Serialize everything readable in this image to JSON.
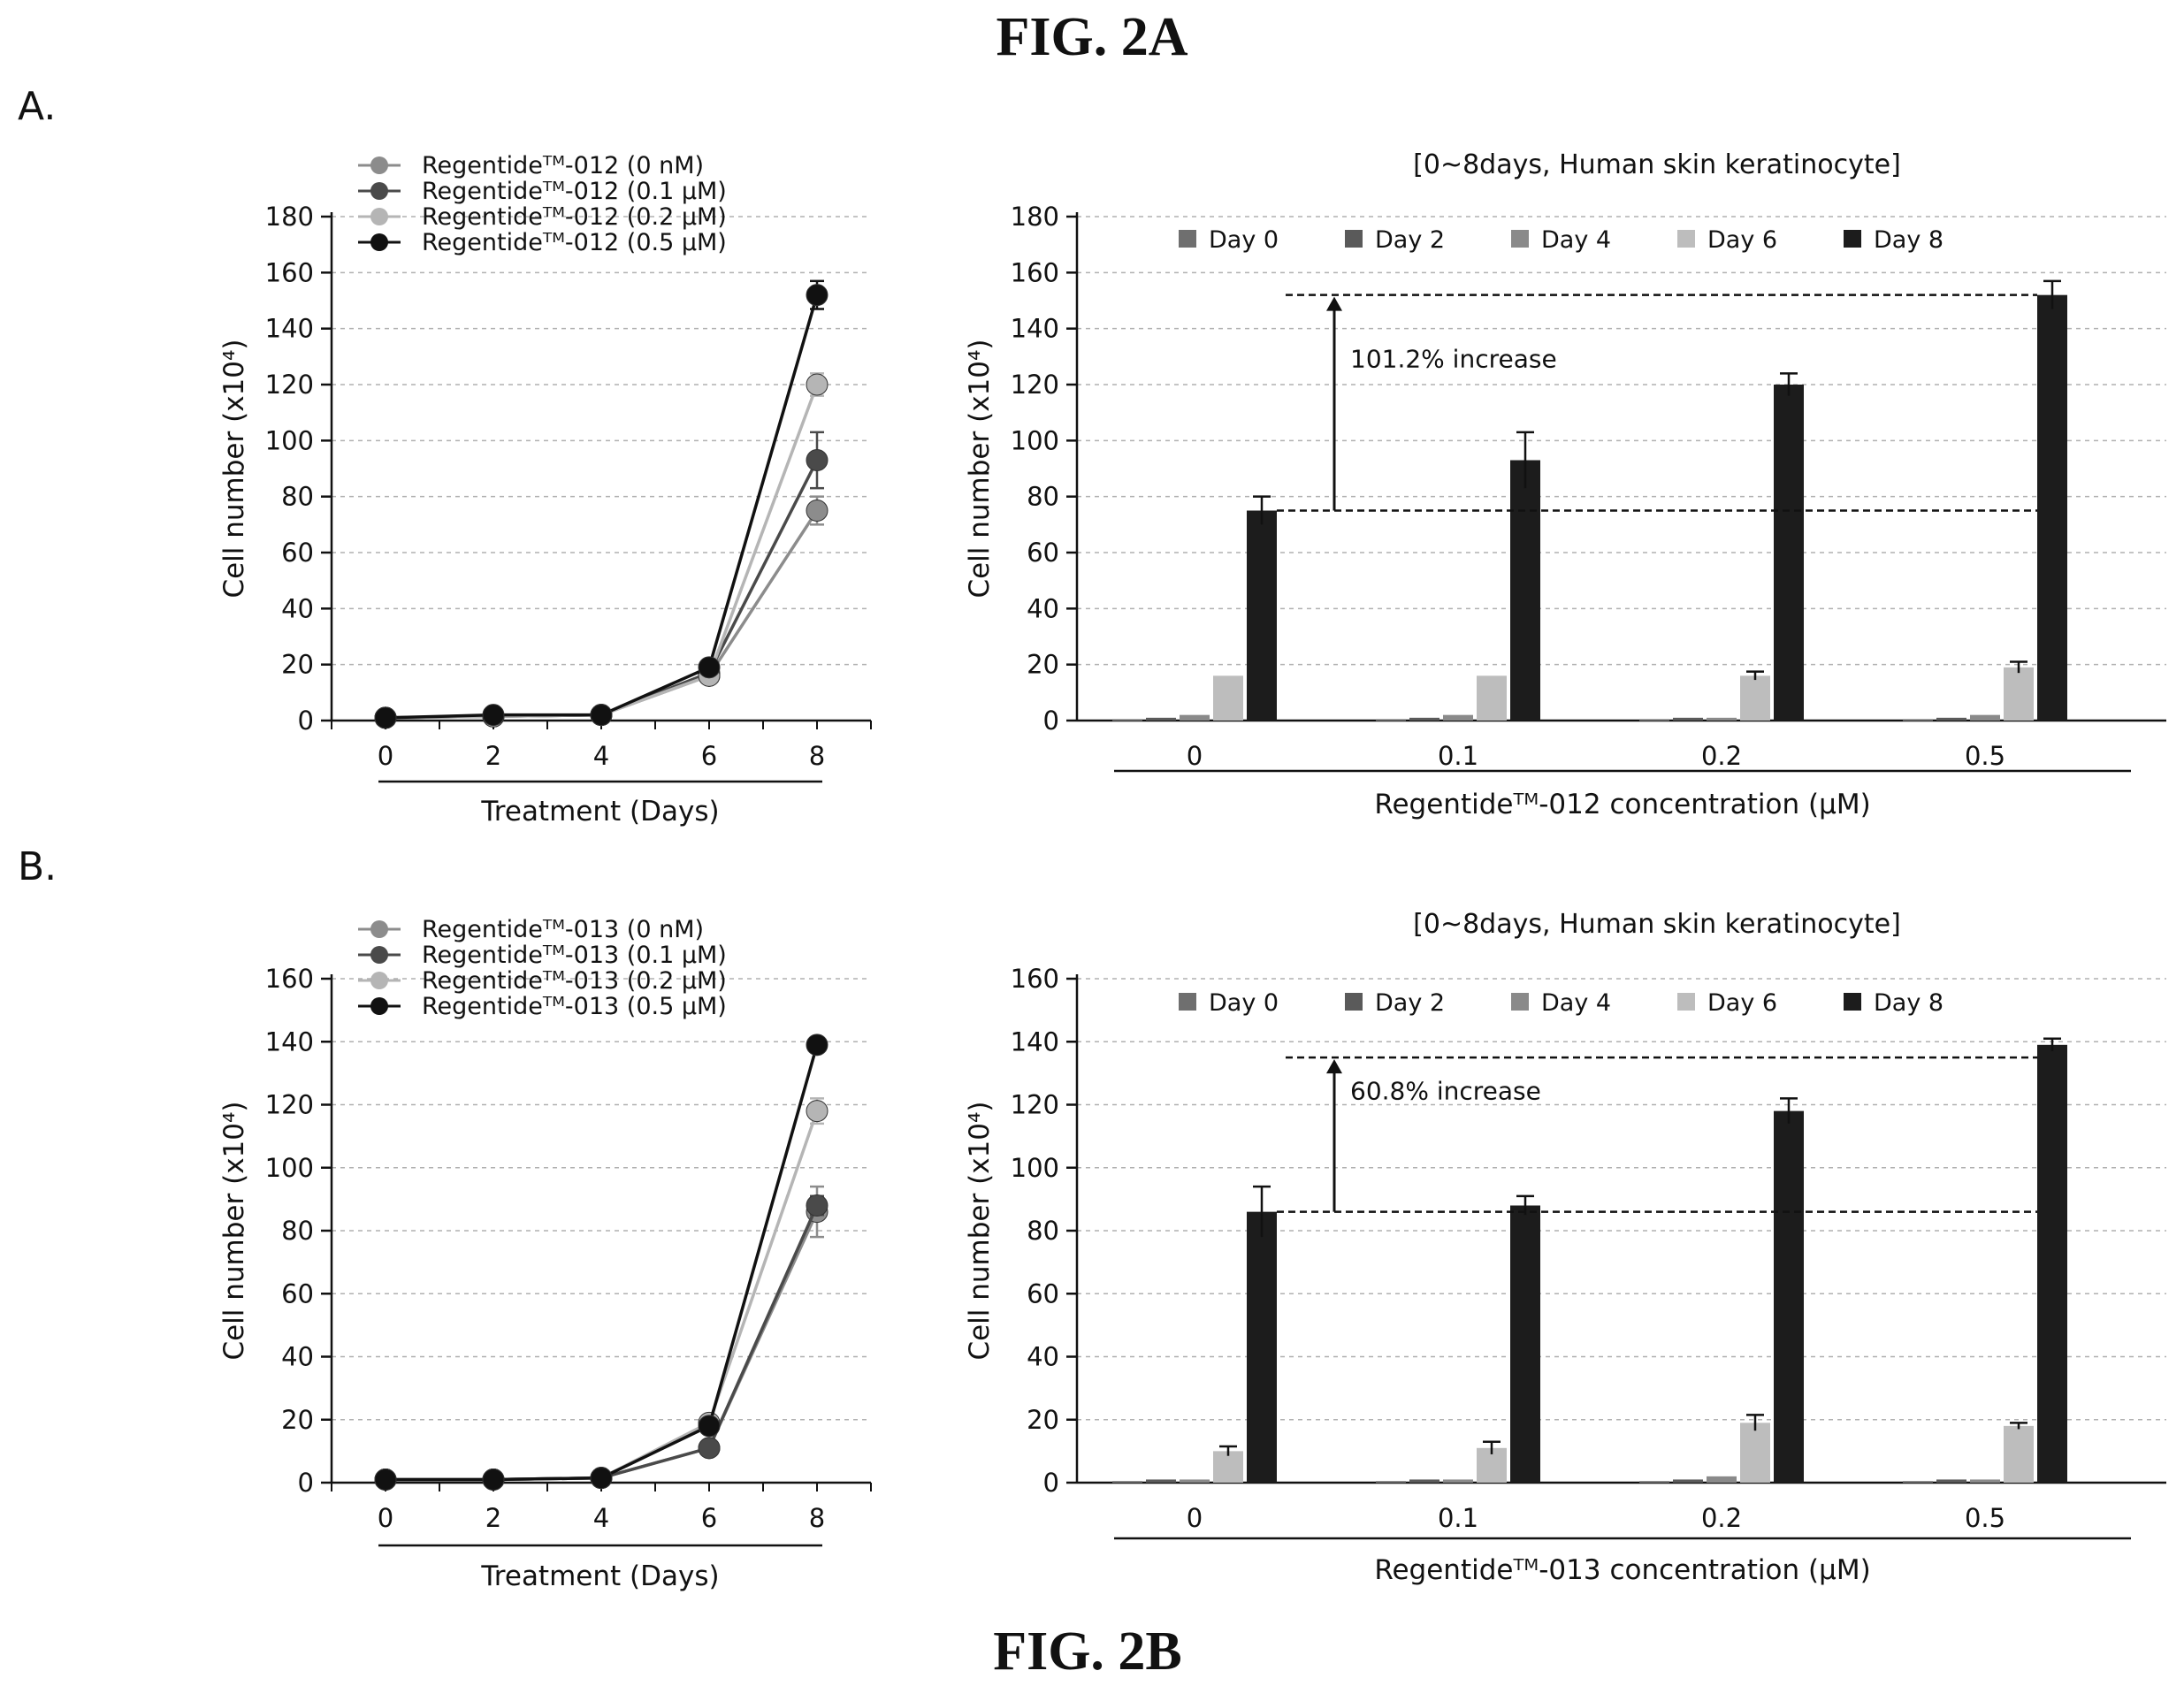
{
  "figure": {
    "title_top": "FIG. 2A",
    "title_bottom": "FIG. 2B",
    "panel_a_label": "A.",
    "panel_b_label": "B."
  },
  "colors": {
    "day0": "#6f6f6f",
    "day2": "#5a5a5a",
    "day4": "#8a8a8a",
    "day6": "#bdbdbd",
    "day8": "#1c1c1c",
    "line_0": "#8c8c8c",
    "line_01": "#4a4a4a",
    "line_02": "#b5b5b5",
    "line_05": "#111111",
    "grid": "#b0b0b0"
  },
  "chart_data": [
    {
      "type": "line",
      "panel": "A",
      "xlabel": "Treatment (Days)",
      "ylabel": "Cell number (x10⁴)",
      "x": [
        0,
        2,
        4,
        6,
        8
      ],
      "xlim": [
        -1,
        9
      ],
      "ylim": [
        0,
        180
      ],
      "yticks": [
        0,
        20,
        40,
        60,
        80,
        100,
        120,
        140,
        160,
        180
      ],
      "grid": true,
      "legend_position": "top-left",
      "series": [
        {
          "name": "Regentideᵀᴹ-012 (0 nM)",
          "color": "#8c8c8c",
          "values": [
            1,
            1.5,
            2,
            16,
            75
          ],
          "errors": [
            0,
            0,
            0,
            1,
            5
          ]
        },
        {
          "name": "Regentideᵀᴹ-012 (0.1 μM)",
          "color": "#4a4a4a",
          "values": [
            1,
            1.5,
            2,
            17,
            93
          ],
          "errors": [
            0,
            0,
            0,
            1,
            10
          ]
        },
        {
          "name": "Regentideᵀᴹ-012 (0.2 μM)",
          "color": "#b5b5b5",
          "values": [
            1,
            1.5,
            2,
            16,
            120
          ],
          "errors": [
            0,
            0,
            0,
            1,
            4
          ]
        },
        {
          "name": "Regentideᵀᴹ-012 (0.5 μM)",
          "color": "#111111",
          "values": [
            1,
            2,
            2,
            19,
            152
          ],
          "errors": [
            0,
            0,
            0,
            1,
            5
          ]
        }
      ]
    },
    {
      "type": "bar",
      "panel": "A",
      "title": "[0~8days, Human skin keratinocyte]",
      "xlabel": "Regentideᵀᴹ-012 concentration (μM)",
      "ylabel": "Cell number (x10⁴)",
      "categories": [
        "0",
        "0.1",
        "0.2",
        "0.5"
      ],
      "ylim": [
        0,
        180
      ],
      "yticks": [
        0,
        20,
        40,
        60,
        80,
        100,
        120,
        140,
        160,
        180
      ],
      "grid": true,
      "legend_position": "top",
      "series": [
        {
          "name": "Day 0",
          "color": "#6f6f6f",
          "values": [
            0.5,
            0.5,
            0.5,
            0.5
          ],
          "errors": [
            0,
            0,
            0,
            0
          ]
        },
        {
          "name": "Day 2",
          "color": "#5a5a5a",
          "values": [
            1,
            1,
            1,
            1
          ],
          "errors": [
            0,
            0,
            0,
            0
          ]
        },
        {
          "name": "Day 4",
          "color": "#8a8a8a",
          "values": [
            2,
            2,
            1,
            2
          ],
          "errors": [
            0,
            0,
            0,
            0
          ]
        },
        {
          "name": "Day 6",
          "color": "#bdbdbd",
          "values": [
            16,
            16,
            16,
            19
          ],
          "errors": [
            0,
            0,
            1.5,
            2
          ]
        },
        {
          "name": "Day 8",
          "color": "#1c1c1c",
          "values": [
            75,
            93,
            120,
            152
          ],
          "errors": [
            5,
            10,
            4,
            5
          ]
        }
      ],
      "annotation": {
        "text": "101.2% increase",
        "from": 75,
        "to": 152
      }
    },
    {
      "type": "line",
      "panel": "B",
      "xlabel": "Treatment (Days)",
      "ylabel": "Cell number (x10⁴)",
      "x": [
        0,
        2,
        4,
        6,
        8
      ],
      "xlim": [
        -1,
        9
      ],
      "ylim": [
        0,
        160
      ],
      "yticks": [
        0,
        20,
        40,
        60,
        80,
        100,
        120,
        140,
        160
      ],
      "grid": true,
      "legend_position": "top-left",
      "series": [
        {
          "name": "Regentideᵀᴹ-013 (0 nM)",
          "color": "#8c8c8c",
          "values": [
            1,
            1,
            1.5,
            11,
            86
          ],
          "errors": [
            0,
            0,
            0,
            1,
            8
          ]
        },
        {
          "name": "Regentideᵀᴹ-013 (0.1 μM)",
          "color": "#4a4a4a",
          "values": [
            1,
            1,
            1.5,
            11,
            88
          ],
          "errors": [
            0,
            0,
            0,
            1,
            3
          ]
        },
        {
          "name": "Regentideᵀᴹ-013 (0.2 μM)",
          "color": "#b5b5b5",
          "values": [
            1,
            1,
            1.5,
            19,
            118
          ],
          "errors": [
            0,
            0,
            0,
            2,
            4
          ]
        },
        {
          "name": "Regentideᵀᴹ-013 (0.5 μM)",
          "color": "#111111",
          "values": [
            1,
            1,
            1.5,
            18,
            139
          ],
          "errors": [
            0,
            0,
            0,
            1,
            2
          ]
        }
      ]
    },
    {
      "type": "bar",
      "panel": "B",
      "title": "[0~8days, Human skin keratinocyte]",
      "xlabel": "Regentideᵀᴹ-013 concentration (μM)",
      "ylabel": "Cell number (x10⁴)",
      "categories": [
        "0",
        "0.1",
        "0.2",
        "0.5"
      ],
      "ylim": [
        0,
        160
      ],
      "yticks": [
        0,
        20,
        40,
        60,
        80,
        100,
        120,
        140,
        160
      ],
      "grid": true,
      "legend_position": "top",
      "series": [
        {
          "name": "Day 0",
          "color": "#6f6f6f",
          "values": [
            0.5,
            0.5,
            0.5,
            0.5
          ],
          "errors": [
            0,
            0,
            0,
            0
          ]
        },
        {
          "name": "Day 2",
          "color": "#5a5a5a",
          "values": [
            1,
            1,
            1,
            1
          ],
          "errors": [
            0,
            0,
            0,
            0
          ]
        },
        {
          "name": "Day 4",
          "color": "#8a8a8a",
          "values": [
            1,
            1,
            2,
            1
          ],
          "errors": [
            0,
            0,
            0,
            0
          ]
        },
        {
          "name": "Day 6",
          "color": "#bdbdbd",
          "values": [
            10,
            11,
            19,
            18
          ],
          "errors": [
            1.5,
            2,
            2.5,
            1
          ]
        },
        {
          "name": "Day 8",
          "color": "#1c1c1c",
          "values": [
            86,
            88,
            118,
            139
          ],
          "errors": [
            8,
            3,
            4,
            2
          ]
        }
      ],
      "annotation": {
        "text": "60.8% increase",
        "from": 86,
        "to": 135
      }
    }
  ]
}
